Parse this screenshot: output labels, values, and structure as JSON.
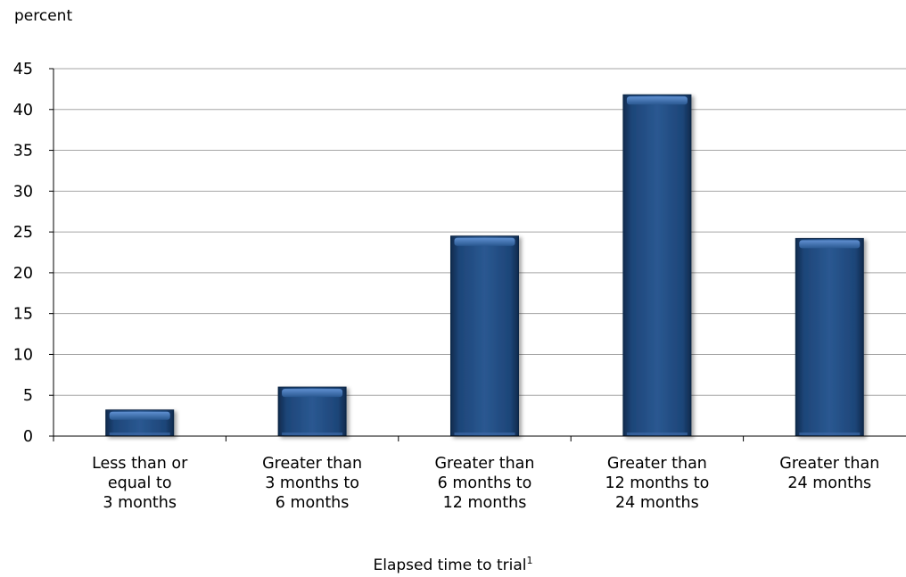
{
  "chart_data": {
    "type": "bar",
    "title": "",
    "ylabel": "percent",
    "xlabel": "Elapsed time to trial",
    "xlabel_note": "1",
    "ylim": [
      0,
      45
    ],
    "yticks": [
      0,
      5,
      10,
      15,
      20,
      25,
      30,
      35,
      40,
      45
    ],
    "grid": true,
    "categories": [
      "Less than or\nequal to\n3 months",
      "Greater than\n3 months to\n6 months",
      "Greater than\n6 months to\n12 months",
      "Greater than\n12 months to\n24 months",
      "Greater than\n24 months"
    ],
    "values": [
      3.2,
      6.0,
      24.5,
      41.8,
      24.2
    ],
    "bar_color": "#234f88"
  }
}
